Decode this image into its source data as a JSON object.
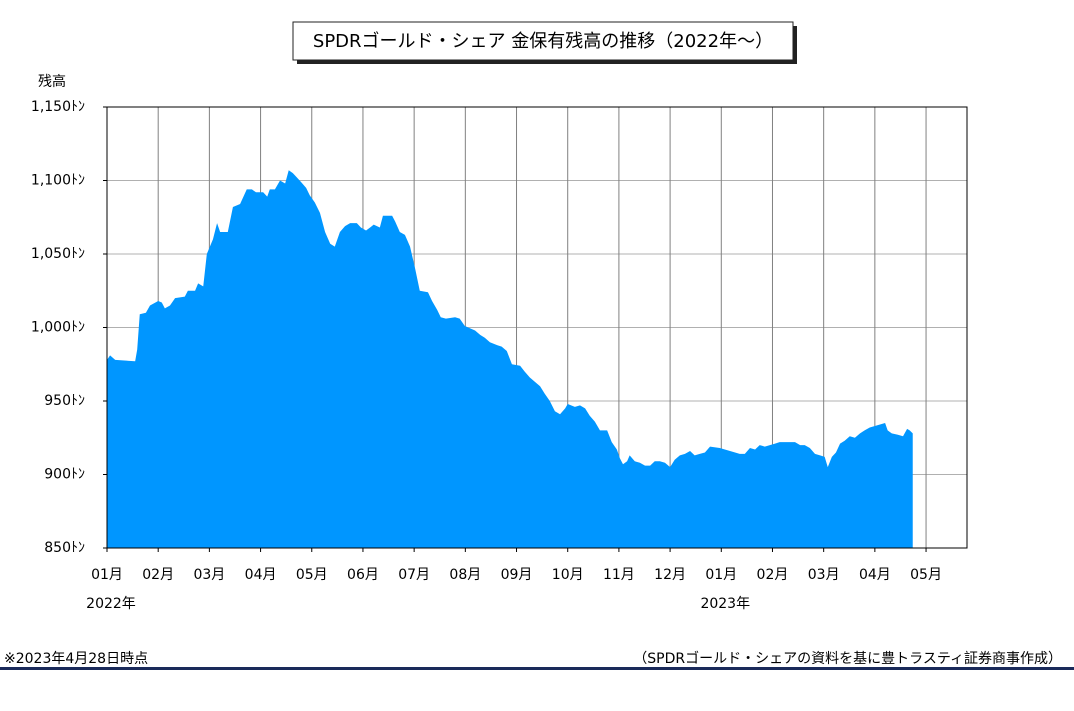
{
  "chart_data": {
    "type": "area",
    "title": "SPDRゴールド・シェア 金保有残高の推移（2022年～）",
    "y_label": "残高",
    "color": "#0096ff",
    "grid": true,
    "x": [
      0,
      0.06,
      0.16,
      0.55,
      0.59,
      0.64,
      0.76,
      0.84,
      1.0,
      1.07,
      1.13,
      1.23,
      1.33,
      1.52,
      1.58,
      1.72,
      1.78,
      1.88,
      1.95,
      2.07,
      2.15,
      2.21,
      2.36,
      2.46,
      2.6,
      2.73,
      2.83,
      2.91,
      3.05,
      3.13,
      3.18,
      3.28,
      3.38,
      3.48,
      3.55,
      3.63,
      3.71,
      3.79,
      3.89,
      3.96,
      4.06,
      4.16,
      4.26,
      4.36,
      4.45,
      4.55,
      4.65,
      4.75,
      4.88,
      4.96,
      5.06,
      5.14,
      5.21,
      5.33,
      5.39,
      5.57,
      5.63,
      5.72,
      5.82,
      5.92,
      6.02,
      6.11,
      6.27,
      6.35,
      6.45,
      6.52,
      6.62,
      6.8,
      6.89,
      6.99,
      7.19,
      7.29,
      7.38,
      7.48,
      7.62,
      7.71,
      7.81,
      7.91,
      8.07,
      8.16,
      8.26,
      8.36,
      8.46,
      8.55,
      8.65,
      8.75,
      8.85,
      8.95,
      9.0,
      9.14,
      9.24,
      9.34,
      9.43,
      9.53,
      9.63,
      9.77,
      9.86,
      9.96,
      10.02,
      10.08,
      10.16,
      10.21,
      10.31,
      10.41,
      10.51,
      10.61,
      10.7,
      10.8,
      10.9,
      11.0,
      11.09,
      11.19,
      11.29,
      11.39,
      11.48,
      11.58,
      11.68,
      11.78,
      11.97,
      12.07,
      12.17,
      12.27,
      12.36,
      12.46,
      12.56,
      12.66,
      12.75,
      12.85,
      12.95,
      13.05,
      13.14,
      13.44,
      13.54,
      13.63,
      13.73,
      13.83,
      13.93,
      14.02,
      14.08,
      14.16,
      14.24,
      14.32,
      14.41,
      14.51,
      14.61,
      14.71,
      14.8,
      14.9,
      15.0,
      15.1,
      15.2,
      15.25,
      15.33,
      15.45,
      15.55,
      15.63,
      15.68,
      15.74
    ],
    "values": [
      978,
      981,
      978,
      977,
      985,
      1009,
      1010,
      1015,
      1018,
      1017,
      1013,
      1015,
      1020,
      1021,
      1025,
      1025,
      1030,
      1028,
      1050,
      1060,
      1071,
      1065,
      1065,
      1082,
      1084,
      1094,
      1094,
      1092,
      1092,
      1089,
      1094,
      1094,
      1100,
      1098,
      1107,
      1105,
      1102,
      1099,
      1095,
      1090,
      1085,
      1078,
      1065,
      1057,
      1055,
      1065,
      1069,
      1071,
      1071,
      1068,
      1066,
      1068,
      1070,
      1068,
      1076,
      1076,
      1072,
      1065,
      1063,
      1055,
      1040,
      1025,
      1024,
      1018,
      1012,
      1007,
      1006,
      1007,
      1006,
      1001,
      998,
      995,
      993,
      990,
      988,
      987,
      984,
      975,
      974,
      970,
      966,
      963,
      960,
      955,
      950,
      943,
      941,
      945,
      948,
      946,
      947,
      945,
      940,
      936,
      930,
      930,
      922,
      917,
      911,
      907,
      909,
      913,
      909,
      908,
      906,
      906,
      909,
      909,
      908,
      905,
      910,
      913,
      914,
      916,
      913,
      914,
      915,
      919,
      918,
      917,
      916,
      915,
      914,
      914,
      918,
      917,
      920,
      919,
      920,
      921,
      922,
      922,
      920,
      920,
      918,
      914,
      913,
      912,
      905,
      912,
      915,
      921,
      923,
      926,
      925,
      928,
      930,
      932,
      933,
      934,
      935,
      930,
      928,
      927,
      926,
      931,
      930,
      928
    ],
    "xlim": [
      0,
      16.8
    ],
    "xticks": [
      {
        "value": 0,
        "label": "01月"
      },
      {
        "value": 1,
        "label": "02月"
      },
      {
        "value": 2,
        "label": "03月"
      },
      {
        "value": 3,
        "label": "04月"
      },
      {
        "value": 4,
        "label": "05月"
      },
      {
        "value": 5,
        "label": "06月"
      },
      {
        "value": 6,
        "label": "07月"
      },
      {
        "value": 7,
        "label": "08月"
      },
      {
        "value": 8,
        "label": "09月"
      },
      {
        "value": 9,
        "label": "10月"
      },
      {
        "value": 10,
        "label": "11月"
      },
      {
        "value": 11,
        "label": "12月"
      },
      {
        "value": 12,
        "label": "01月"
      },
      {
        "value": 13,
        "label": "02月"
      },
      {
        "value": 14,
        "label": "03月"
      },
      {
        "value": 15,
        "label": "04月"
      },
      {
        "value": 16,
        "label": "05月"
      }
    ],
    "year_labels": [
      {
        "value": 0,
        "label": "2022年"
      },
      {
        "value": 12,
        "label": "2023年"
      }
    ],
    "ylim": [
      850,
      1150
    ],
    "yticks": [
      {
        "value": 850,
        "label": "850ﾄﾝ"
      },
      {
        "value": 900,
        "label": "900ﾄﾝ"
      },
      {
        "value": 950,
        "label": "950ﾄﾝ"
      },
      {
        "value": 1000,
        "label": "1,000ﾄﾝ"
      },
      {
        "value": 1050,
        "label": "1,050ﾄﾝ"
      },
      {
        "value": 1100,
        "label": "1,100ﾄﾝ"
      },
      {
        "value": 1150,
        "label": "1,150ﾄﾝ"
      }
    ]
  },
  "footnote": "※2023年4月28日時点",
  "source": "（SPDRゴールド・シェアの資料を基に豊トラスティ証券商事作成）"
}
